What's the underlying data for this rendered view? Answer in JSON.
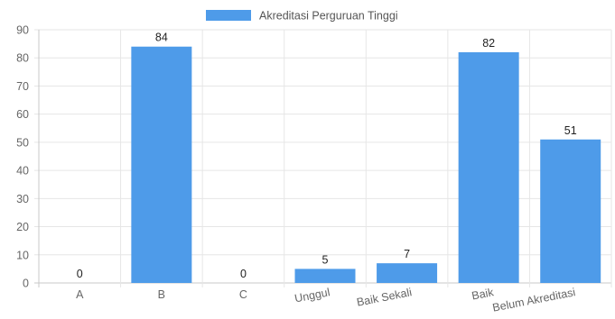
{
  "chart_data": {
    "type": "bar",
    "categories": [
      "A",
      "B",
      "C",
      "Unggul",
      "Baik Sekali",
      "Baik",
      "Belum Akreditasi"
    ],
    "series": [
      {
        "name": "Akreditasi Perguruan Tinggi",
        "values": [
          0,
          84,
          0,
          5,
          7,
          82,
          51
        ],
        "color": "#4e9be9"
      }
    ],
    "yticks": [
      0,
      10,
      20,
      30,
      40,
      50,
      60,
      70,
      80,
      90
    ],
    "ylim": [
      0,
      90
    ],
    "title": "",
    "xlabel": "",
    "ylabel": "",
    "grid": true,
    "legend_position": "top",
    "data_labels": true,
    "tick_rotation_from_category": 3
  }
}
